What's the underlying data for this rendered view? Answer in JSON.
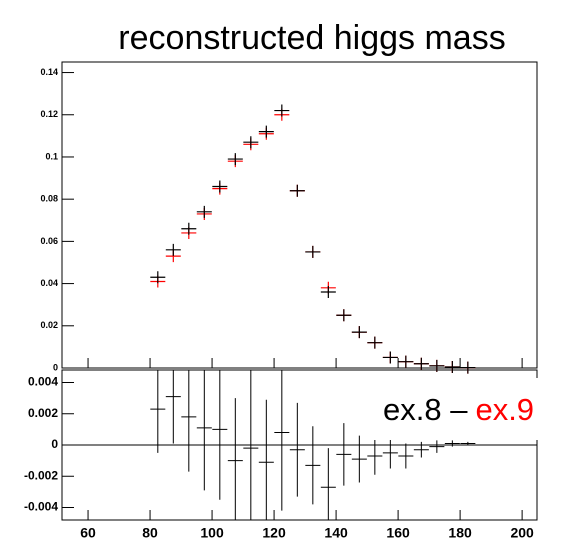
{
  "chart_data": [
    {
      "type": "scatter",
      "title": "reconstructed higgs mass",
      "x": [
        82.5,
        87.5,
        92.5,
        97.5,
        102.5,
        107.5,
        112.5,
        117.5,
        122.5,
        127.5,
        132.5,
        137.5,
        142.5,
        147.5,
        152.5,
        157.5,
        162.5,
        167.5,
        172.5,
        177.5,
        182.5
      ],
      "series": [
        {
          "color": "#ff0000",
          "values": [
            0.041,
            0.053,
            0.064,
            0.073,
            0.085,
            0.098,
            0.106,
            0.111,
            0.12,
            0.084,
            0.055,
            0.038,
            0.025,
            0.017,
            0.012,
            0.005,
            0.003,
            0.002,
            0.001,
            0.0005,
            0.0002
          ]
        },
        {
          "color": "#000000",
          "values": [
            0.043,
            0.056,
            0.066,
            0.074,
            0.086,
            0.099,
            0.107,
            0.112,
            0.122,
            0.084,
            0.055,
            0.036,
            0.025,
            0.017,
            0.012,
            0.005,
            0.003,
            0.002,
            0.001,
            0.0005,
            0.0002
          ]
        }
      ],
      "xlim": [
        51.6,
        204.8
      ],
      "xticks": [
        60,
        80,
        100,
        120,
        140,
        160,
        180,
        200
      ],
      "ylim": [
        0,
        0.145
      ],
      "yticks": [
        0,
        0.02,
        0.04,
        0.06,
        0.08,
        0.1,
        0.12,
        0.14
      ]
    },
    {
      "type": "errorbar",
      "x": [
        82.5,
        87.5,
        92.5,
        97.5,
        102.5,
        107.5,
        112.5,
        117.5,
        122.5,
        127.5,
        132.5,
        137.5,
        142.5,
        147.5,
        152.5,
        157.5,
        162.5,
        167.5,
        172.5,
        177.5,
        182.5
      ],
      "values": [
        0.0023,
        0.0031,
        0.0018,
        0.0011,
        0.001,
        -0.001,
        -0.0002,
        -0.0011,
        0.0008,
        -0.0003,
        -0.0013,
        -0.0027,
        -0.0006,
        -0.0009,
        -0.0007,
        -0.0005,
        -0.0007,
        -0.0003,
        -0.0001,
        0.0001,
        0.0001
      ],
      "errors": [
        0.0028,
        0.003,
        0.0035,
        0.004,
        0.0045,
        0.004,
        0.005,
        0.004,
        0.005,
        0.003,
        0.0025,
        0.0025,
        0.002,
        0.0015,
        0.0012,
        0.001,
        0.0008,
        0.0005,
        0.0004,
        0.0002,
        0.0001
      ],
      "color": "#000000",
      "xlim": [
        51.6,
        204.8
      ],
      "xticks": [
        60,
        80,
        100,
        120,
        140,
        160,
        180,
        200
      ],
      "ylim": [
        -0.0048,
        0.0048
      ],
      "yticks": [
        -0.004,
        -0.002,
        0,
        0.002,
        0.004
      ],
      "annotation": {
        "text": "ex.8 –",
        "highlight": "ex.9",
        "highlight_color": "#ff0000"
      }
    }
  ]
}
